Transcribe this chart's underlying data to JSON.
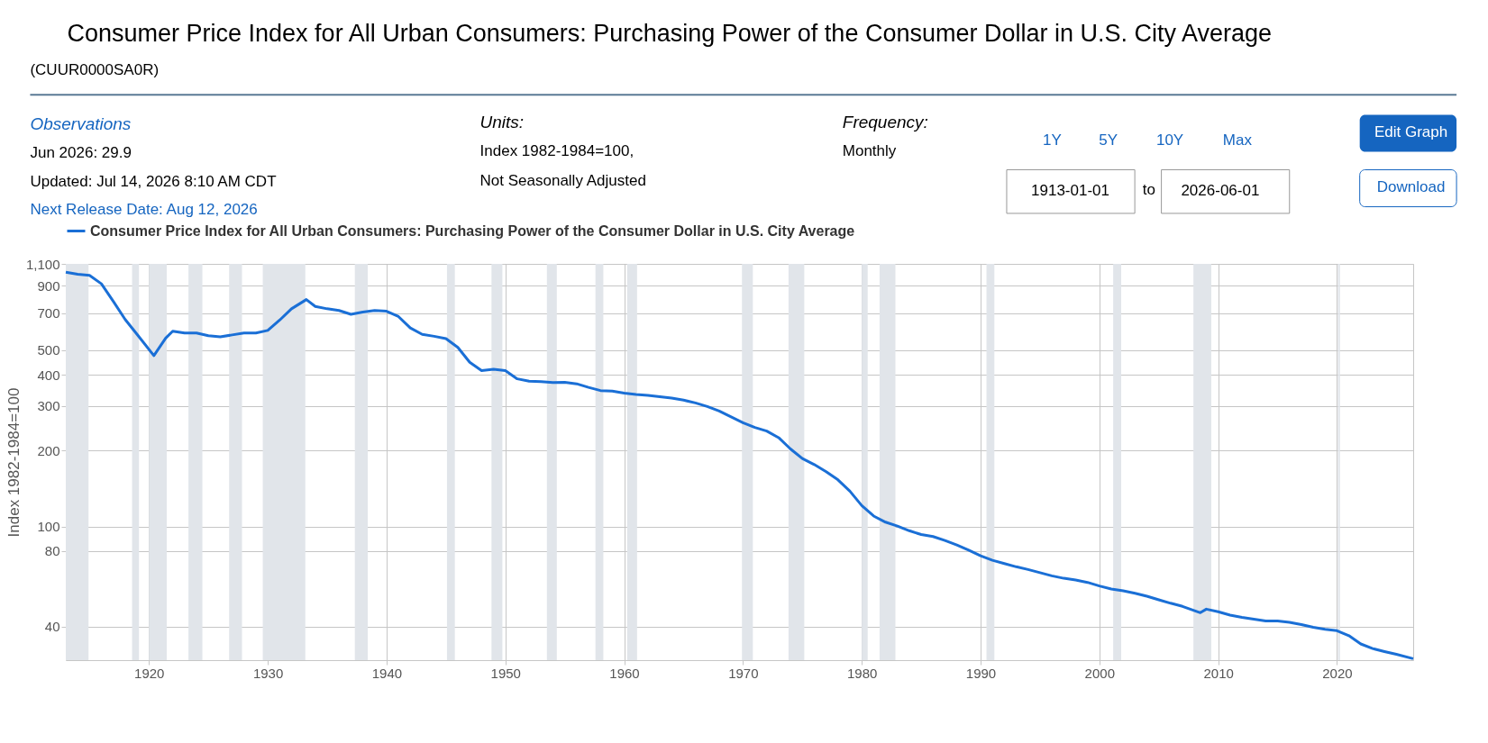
{
  "chart_data": {
    "type": "line",
    "title": "Consumer Price Index for All Urban Consumers: Purchasing Power of the Consumer Dollar in U.S. City Average",
    "subtitle": "(CUUR0000SA0R)",
    "annotations": [
      "Observations",
      "Jun 2026: 29.9",
      "Updated: Jul 14, 2026 8:10 AM CDT",
      "Next Release Date: Aug 12, 2026",
      "Units:",
      "Index 1982-1984=100,",
      "Not Seasonally Adjusted",
      "Frequency:",
      "Monthly",
      "1Y",
      "5Y",
      "10Y",
      "Max",
      "1913-01-01",
      "to",
      "2026-06-01",
      "Edit Graph",
      "Download"
    ],
    "ylabel": "Index 1982-1984=100",
    "x": [
      "1913-01",
      "1914-01",
      "1915-01",
      "1916-01",
      "1917-01",
      "1918-01",
      "1919-01",
      "1920-06",
      "1921-06",
      "1922-01",
      "1923-01",
      "1924-01",
      "1925-01",
      "1926-01",
      "1927-01",
      "1928-01",
      "1929-01",
      "1930-01",
      "1931-01",
      "1932-01",
      "1933-04",
      "1934-01",
      "1935-01",
      "1936-01",
      "1937-01",
      "1938-01",
      "1939-01",
      "1940-01",
      "1941-01",
      "1942-01",
      "1943-01",
      "1944-01",
      "1945-01",
      "1946-01",
      "1947-01",
      "1948-01",
      "1949-01",
      "1950-01",
      "1951-01",
      "1952-01",
      "1953-01",
      "1954-01",
      "1955-01",
      "1956-01",
      "1957-01",
      "1958-01",
      "1959-01",
      "1960-01",
      "1961-01",
      "1962-01",
      "1963-01",
      "1964-01",
      "1965-01",
      "1966-01",
      "1967-01",
      "1968-01",
      "1969-01",
      "1970-01",
      "1971-01",
      "1972-01",
      "1973-01",
      "1974-01",
      "1975-01",
      "1976-01",
      "1977-01",
      "1978-01",
      "1979-01",
      "1980-01",
      "1981-01",
      "1982-01",
      "1983-01",
      "1984-01",
      "1985-01",
      "1986-01",
      "1987-01",
      "1988-01",
      "1989-01",
      "1990-01",
      "1991-01",
      "1992-01",
      "1993-01",
      "1994-01",
      "1995-01",
      "1996-01",
      "1997-01",
      "1998-01",
      "1999-01",
      "2000-01",
      "2001-01",
      "2002-01",
      "2003-01",
      "2004-01",
      "2005-01",
      "2006-01",
      "2007-01",
      "2008-07",
      "2009-01",
      "2010-01",
      "2011-01",
      "2012-01",
      "2013-01",
      "2014-01",
      "2015-01",
      "2016-01",
      "2017-01",
      "2018-01",
      "2019-01",
      "2020-01",
      "2021-01",
      "2022-01",
      "2023-01",
      "2024-01",
      "2025-01",
      "2026-06"
    ],
    "series": [
      {
        "name": "Consumer Price Index for All Urban Consumers: Purchasing Power of the Consumer Dollar in U.S. City Average",
        "color": "#1a6fd6",
        "values": [
          1020,
          1000,
          990,
          917,
          781,
          662,
          578,
          476,
          559,
          595,
          585,
          585,
          571,
          565,
          575,
          585,
          585,
          599,
          658,
          730,
          794,
          746,
          730,
          719,
          694,
          709,
          719,
          714,
          680,
          613,
          578,
          568,
          556,
          513,
          448,
          415,
          420,
          415,
          385,
          377,
          375,
          372,
          373,
          368,
          356,
          346,
          344,
          338,
          334,
          331,
          327,
          323,
          317,
          309,
          299,
          287,
          272,
          258,
          247,
          239,
          225,
          203,
          186,
          176,
          165,
          153,
          138,
          121,
          110,
          104,
          100.4,
          96.2,
          92.9,
          91.2,
          88.0,
          84.5,
          80.6,
          76.5,
          73.4,
          71.3,
          69.2,
          67.5,
          65.6,
          63.7,
          62.3,
          61.3,
          60.0,
          58.1,
          56.5,
          55.6,
          54.3,
          52.9,
          51.2,
          49.6,
          48.2,
          45.5,
          47.0,
          45.9,
          44.5,
          43.6,
          42.9,
          42.2,
          42.2,
          41.7,
          40.8,
          39.8,
          39.1,
          38.6,
          36.9,
          34.2,
          32.8,
          31.9,
          31.1,
          29.9
        ]
      }
    ],
    "log": "y",
    "ylim": [
      29.5,
      1100
    ],
    "yticks": [
      40,
      80,
      100,
      200,
      300,
      400,
      500,
      700,
      900,
      {
        "value": 1100,
        "label": "1,100"
      }
    ],
    "xlim": [
      "1913-01",
      "2026-06"
    ],
    "xticks": [
      "1920",
      "1930",
      "1940",
      "1950",
      "1960",
      "1970",
      "1980",
      "1990",
      "2000",
      "2010",
      "2020"
    ],
    "bands": [
      {
        "axis": "x",
        "from": "1913-01",
        "to": "1914-12",
        "color": "#e1e5ea"
      },
      {
        "axis": "x",
        "from": "1918-08",
        "to": "1919-03",
        "color": "#e1e5ea"
      },
      {
        "axis": "x",
        "from": "1920-01",
        "to": "1921-07",
        "color": "#e1e5ea"
      },
      {
        "axis": "x",
        "from": "1923-05",
        "to": "1924-07",
        "color": "#e1e5ea"
      },
      {
        "axis": "x",
        "from": "1926-10",
        "to": "1927-11",
        "color": "#e1e5ea"
      },
      {
        "axis": "x",
        "from": "1929-08",
        "to": "1933-03",
        "color": "#e1e5ea"
      },
      {
        "axis": "x",
        "from": "1937-05",
        "to": "1938-06",
        "color": "#e1e5ea"
      },
      {
        "axis": "x",
        "from": "1945-02",
        "to": "1945-10",
        "color": "#e1e5ea"
      },
      {
        "axis": "x",
        "from": "1948-11",
        "to": "1949-10",
        "color": "#e1e5ea"
      },
      {
        "axis": "x",
        "from": "1953-07",
        "to": "1954-05",
        "color": "#e1e5ea"
      },
      {
        "axis": "x",
        "from": "1957-08",
        "to": "1958-04",
        "color": "#e1e5ea"
      },
      {
        "axis": "x",
        "from": "1960-04",
        "to": "1961-02",
        "color": "#e1e5ea"
      },
      {
        "axis": "x",
        "from": "1969-12",
        "to": "1970-11",
        "color": "#e1e5ea"
      },
      {
        "axis": "x",
        "from": "1973-11",
        "to": "1975-03",
        "color": "#e1e5ea"
      },
      {
        "axis": "x",
        "from": "1980-01",
        "to": "1980-07",
        "color": "#e1e5ea"
      },
      {
        "axis": "x",
        "from": "1981-07",
        "to": "1982-11",
        "color": "#e1e5ea"
      },
      {
        "axis": "x",
        "from": "1990-07",
        "to": "1991-03",
        "color": "#e1e5ea"
      },
      {
        "axis": "x",
        "from": "2001-03",
        "to": "2001-11",
        "color": "#e1e5ea"
      },
      {
        "axis": "x",
        "from": "2007-12",
        "to": "2009-06",
        "color": "#e1e5ea"
      },
      {
        "axis": "x",
        "from": "2020-02",
        "to": "2020-04",
        "color": "#e1e5ea"
      }
    ],
    "grid": true,
    "legend": "top left",
    "marker": "none",
    "line_style": "solid"
  }
}
